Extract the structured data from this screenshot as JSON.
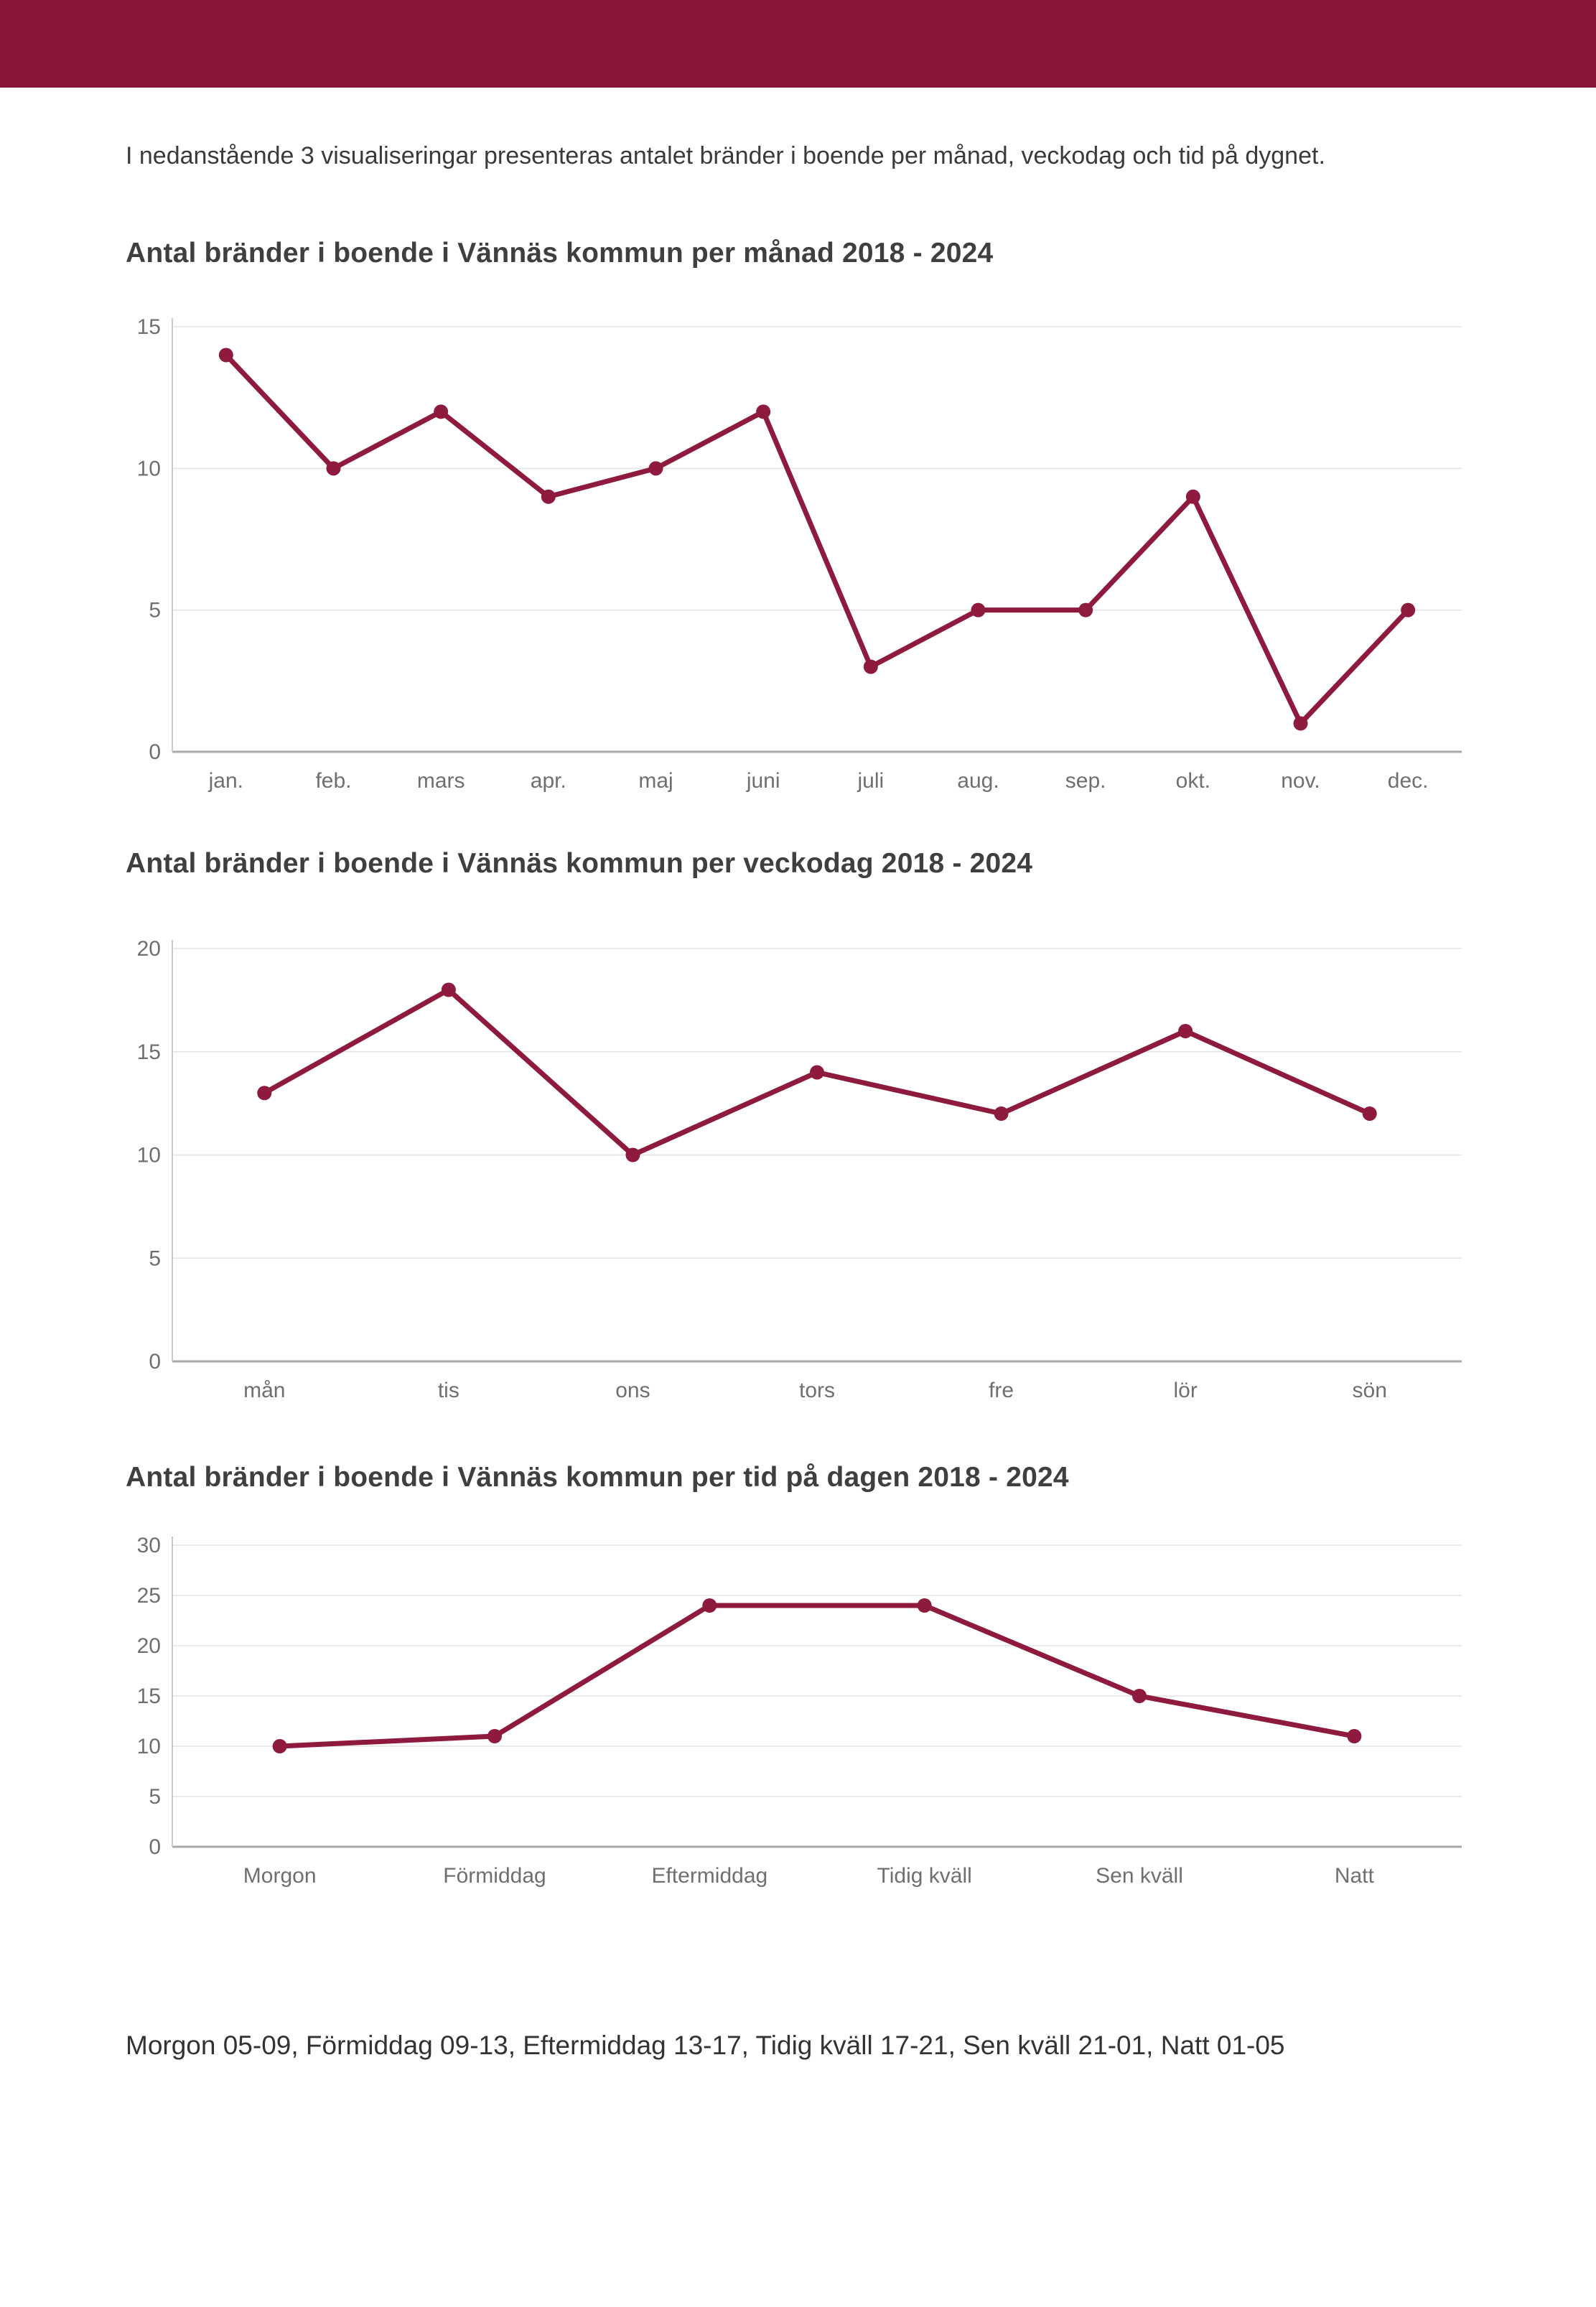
{
  "page": {
    "header_color": "#8B1538",
    "intro": "I nedanstående 3 visualiseringar presenteras antalet bränder i boende per månad, veckodag och tid på dygnet.",
    "footnote": "Morgon 05-09, Förmiddag 09-13, Eftermiddag 13-17, Tidig kväll 17-21, Sen kväll 21-01, Natt 01-05"
  },
  "colors": {
    "line": "#8E1A3D",
    "grid": "#e4e4e4",
    "x_axis": "#a8a8a8",
    "y_axis": "#c9c9c9",
    "tick_label": "#6f6f6f"
  },
  "chart_data": [
    {
      "type": "line",
      "title": "Antal bränder i boende i Vännäs kommun per månad 2018 - 2024",
      "categories": [
        "jan.",
        "feb.",
        "mars",
        "apr.",
        "maj",
        "juni",
        "juli",
        "aug.",
        "sep.",
        "okt.",
        "nov.",
        "dec."
      ],
      "values": [
        14,
        10,
        12,
        9,
        10,
        12,
        3,
        5,
        5,
        9,
        1,
        5
      ],
      "xlabel": "",
      "ylabel": "",
      "ylim": [
        0,
        15
      ],
      "yticks": [
        0,
        5,
        10,
        15
      ],
      "grid": "horizontal",
      "legend_position": "none",
      "line_color": "#8E1A3D"
    },
    {
      "type": "line",
      "title": "Antal bränder i boende i Vännäs kommun per veckodag 2018 - 2024",
      "categories": [
        "mån",
        "tis",
        "ons",
        "tors",
        "fre",
        "lör",
        "sön"
      ],
      "values": [
        13,
        18,
        10,
        14,
        12,
        16,
        12
      ],
      "xlabel": "",
      "ylabel": "",
      "ylim": [
        0,
        20
      ],
      "yticks": [
        0,
        5,
        10,
        15,
        20
      ],
      "grid": "horizontal",
      "legend_position": "none",
      "line_color": "#8E1A3D"
    },
    {
      "type": "line",
      "title": "Antal bränder i boende i Vännäs kommun per tid på dagen 2018 - 2024",
      "categories": [
        "Morgon",
        "Förmiddag",
        "Eftermiddag",
        "Tidig kväll",
        "Sen kväll",
        "Natt"
      ],
      "values": [
        10,
        11,
        24,
        24,
        15,
        11
      ],
      "xlabel": "",
      "ylabel": "",
      "ylim": [
        0,
        30
      ],
      "yticks": [
        0,
        5,
        10,
        15,
        20,
        25,
        30
      ],
      "grid": "horizontal",
      "legend_position": "none",
      "line_color": "#8E1A3D"
    }
  ]
}
